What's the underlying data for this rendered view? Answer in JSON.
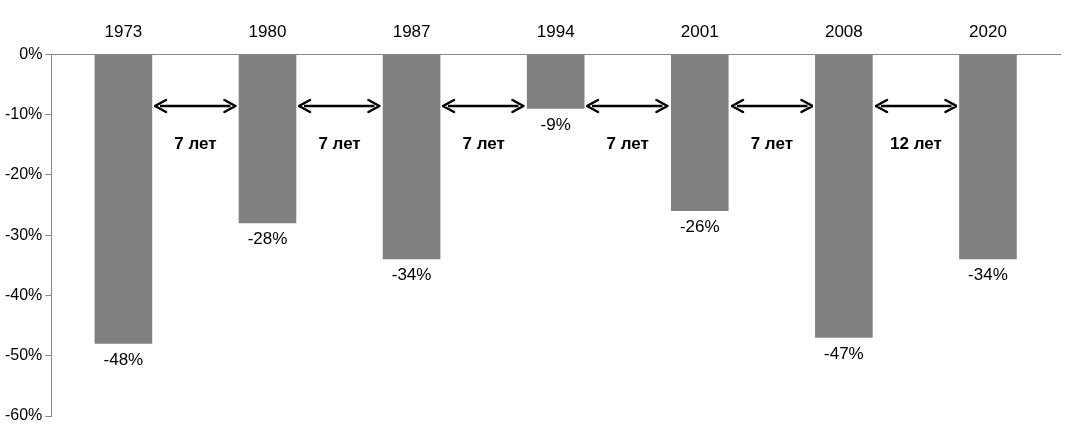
{
  "chart_data": {
    "type": "bar",
    "categories": [
      "1973",
      "1980",
      "1987",
      "1994",
      "2001",
      "2008",
      "2020"
    ],
    "values": [
      -48,
      -28,
      -34,
      -9,
      -26,
      -47,
      -34
    ],
    "value_labels": [
      "-48%",
      "-28%",
      "-34%",
      "-9%",
      "-26%",
      "-47%",
      "-34%"
    ],
    "color": "#808080",
    "ylim": [
      -60,
      0
    ],
    "yticks": [
      {
        "value": 0,
        "label": "0%"
      },
      {
        "value": -10,
        "label": "-10%"
      },
      {
        "value": -20,
        "label": "-20%"
      },
      {
        "value": -30,
        "label": "-30%"
      },
      {
        "value": -40,
        "label": "-40%"
      },
      {
        "value": -50,
        "label": "-50%"
      },
      {
        "value": -60,
        "label": "-60%"
      }
    ],
    "grid": false,
    "legend": false,
    "annotations": [
      "7 лет",
      "7 лет",
      "7 лет",
      "7 лет",
      "7 лет",
      "12 лет"
    ]
  }
}
